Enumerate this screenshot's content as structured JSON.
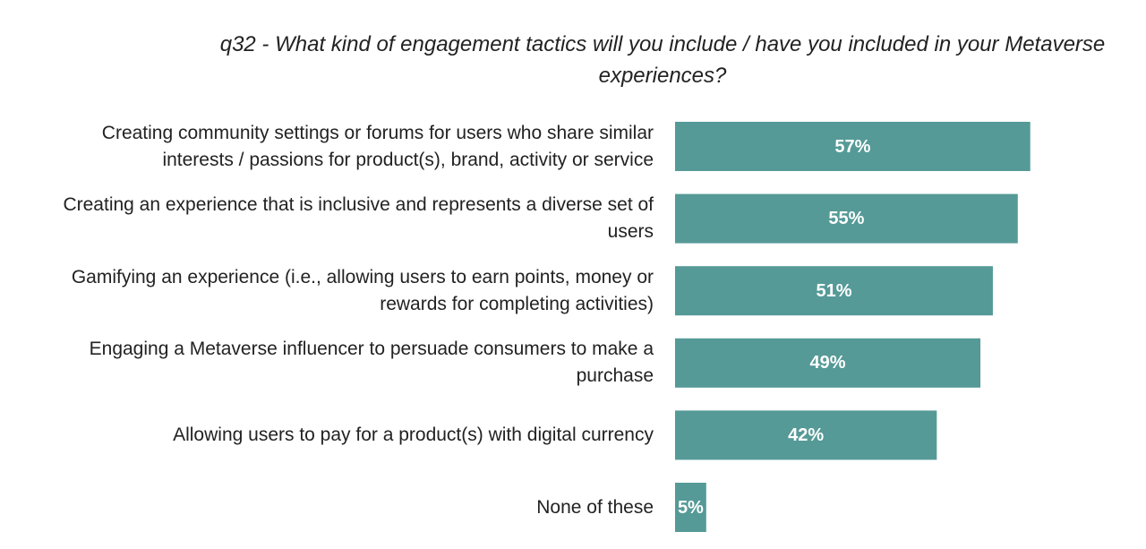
{
  "chart_data": {
    "type": "bar",
    "orientation": "horizontal",
    "title": [
      "q32 - What kind of engagement tactics will you include / have you included in your Metaverse",
      "experiences?"
    ],
    "categories": [
      [
        "Creating community settings or forums for users who share similar",
        "interests / passions for product(s), brand, activity or service"
      ],
      [
        "Creating an experience that is inclusive and represents a diverse set of",
        "users"
      ],
      [
        "Gamifying an experience (i.e., allowing users to earn points, money or",
        "rewards for completing activities)"
      ],
      [
        "Engaging a Metaverse influencer to persuade consumers to make a",
        "purchase"
      ],
      [
        "Allowing users to pay for a product(s) with digital currency"
      ],
      [
        "None of these"
      ]
    ],
    "values": [
      57,
      55,
      51,
      49,
      42,
      5
    ],
    "value_labels": [
      "57%",
      "55%",
      "51%",
      "49%",
      "42%",
      "5%"
    ],
    "unit": "%",
    "xlim": [
      0,
      100
    ],
    "grid": false,
    "legend": "none",
    "bar_color": "#559a97"
  }
}
